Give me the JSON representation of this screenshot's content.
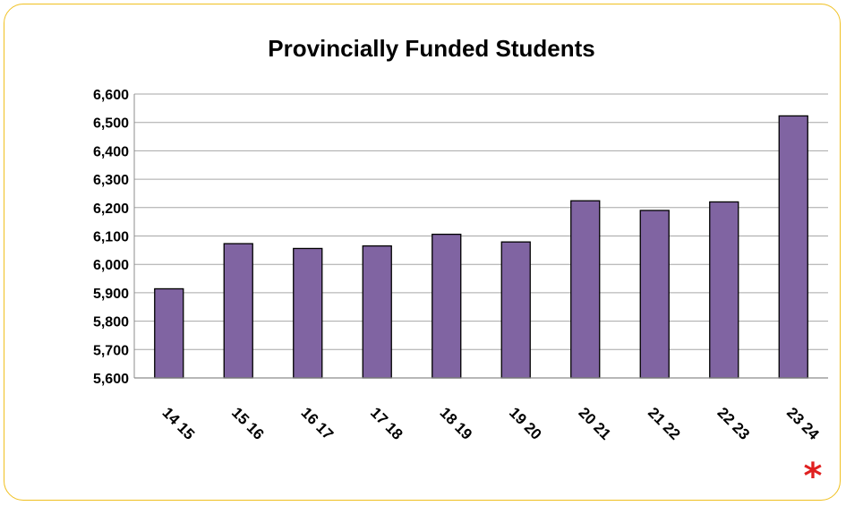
{
  "chart_data": {
    "type": "bar",
    "title": "Provincially Funded Students",
    "categories": [
      "14 15",
      "15 16",
      "16 17",
      "17 18",
      "18 19",
      "19 20",
      "20 21",
      "21 22",
      "22 23",
      "23 24"
    ],
    "values": [
      5914,
      6073,
      6056,
      6065,
      6106,
      6079,
      6224,
      6190,
      6220,
      6523
    ],
    "ylim": [
      5600,
      6600
    ],
    "yticks": [
      "5,600",
      "5,700",
      "5,800",
      "5,900",
      "6,000",
      "6,100",
      "6,200",
      "6,300",
      "6,400",
      "6,500",
      "6,600"
    ],
    "ytick_values": [
      5600,
      5700,
      5800,
      5900,
      6000,
      6100,
      6200,
      6300,
      6400,
      6500,
      6600
    ],
    "grid": true,
    "legend": "none",
    "bar_color": "#8064a2",
    "border_color": "#f0c020",
    "annotation": {
      "text": "*",
      "color": "#e02020"
    }
  }
}
